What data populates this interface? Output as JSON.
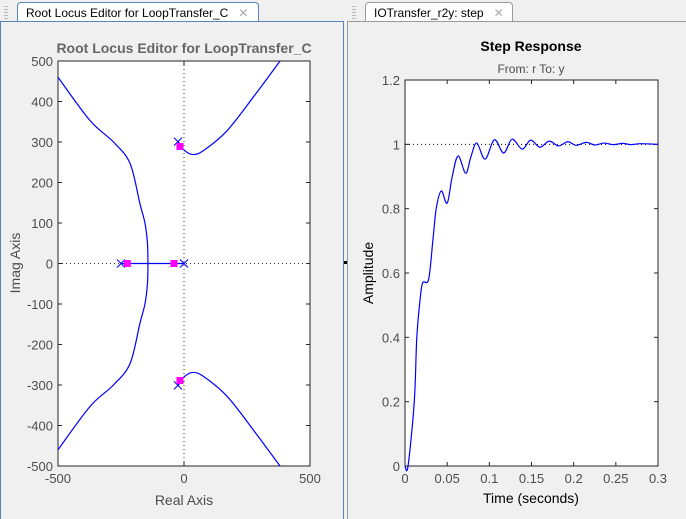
{
  "tabs": [
    {
      "label": "Root Locus Editor for LoopTransfer_C",
      "close_icon": "close-icon",
      "active": true
    },
    {
      "label": "IOTransfer_r2y: step",
      "close_icon": "close-icon",
      "active": false
    }
  ],
  "colors": {
    "locus": "#0000ff",
    "closed_loop_pole": "#ff00ff",
    "axis_text": "#4d4d4d"
  },
  "chart_data": [
    {
      "type": "scatter",
      "title": "Root Locus Editor for LoopTransfer_C",
      "xlabel": "Real Axis",
      "ylabel": "Imag Axis",
      "xlim": [
        -500,
        500
      ],
      "ylim": [
        -500,
        500
      ],
      "xticks": [
        -500,
        0,
        500
      ],
      "yticks": [
        -500,
        -400,
        -300,
        -200,
        -100,
        0,
        100,
        200,
        300,
        400,
        500
      ],
      "grid": false,
      "open_loop_poles": [
        [
          -250,
          0
        ],
        [
          0,
          0
        ],
        [
          -24,
          301
        ],
        [
          -24,
          -301
        ]
      ],
      "closed_loop_poles": [
        [
          -225,
          0
        ],
        [
          -40,
          0
        ],
        [
          -16,
          289
        ],
        [
          -16,
          -289
        ]
      ],
      "branches": [
        [
          [
            -250,
            0
          ],
          [
            -143,
            0
          ]
        ],
        [
          [
            0,
            0
          ],
          [
            -143,
            0
          ]
        ],
        [
          [
            -143,
            0
          ],
          [
            -145,
            50
          ],
          [
            -155,
            100
          ],
          [
            -175,
            148
          ],
          [
            -214,
            247
          ],
          [
            -280,
            300
          ],
          [
            -373,
            353
          ],
          [
            -500,
            460
          ]
        ],
        [
          [
            -143,
            0
          ],
          [
            -145,
            -50
          ],
          [
            -155,
            -100
          ],
          [
            -175,
            -148
          ],
          [
            -214,
            -247
          ],
          [
            -280,
            -300
          ],
          [
            -373,
            -353
          ],
          [
            -500,
            -460
          ]
        ],
        [
          [
            -24,
            301
          ],
          [
            0,
            280
          ],
          [
            36,
            269
          ],
          [
            80,
            280
          ],
          [
            171,
            328
          ],
          [
            280,
            415
          ],
          [
            381,
            500
          ]
        ],
        [
          [
            -24,
            -301
          ],
          [
            0,
            -280
          ],
          [
            36,
            -269
          ],
          [
            80,
            -280
          ],
          [
            171,
            -328
          ],
          [
            280,
            -415
          ],
          [
            381,
            -500
          ]
        ]
      ]
    },
    {
      "type": "line",
      "title": "Step Response",
      "subtitle": "From: r  To: y",
      "xlabel": "Time (seconds)",
      "ylabel": "Amplitude",
      "xlim": [
        0,
        0.3
      ],
      "ylim": [
        0,
        1.2
      ],
      "xticks": [
        0,
        0.05,
        0.1,
        0.15,
        0.2,
        0.25,
        0.3
      ],
      "yticks": [
        0,
        0.2,
        0.4,
        0.6,
        0.8,
        1,
        1.2
      ],
      "reference_line": 1,
      "grid": false,
      "x": [
        0,
        0.0036,
        0.011,
        0.014,
        0.018,
        0.021,
        0.028,
        0.033,
        0.037,
        0.043,
        0.05,
        0.056,
        0.063,
        0.072,
        0.078,
        0.085,
        0.095,
        0.106,
        0.117,
        0.127,
        0.139,
        0.149,
        0.16,
        0.171,
        0.182,
        0.193,
        0.203,
        0.215,
        0.225,
        0.236,
        0.247,
        0.258,
        0.268,
        0.279,
        0.3
      ],
      "values": [
        0,
        0,
        0.2,
        0.4,
        0.52,
        0.57,
        0.58,
        0.7,
        0.8,
        0.855,
        0.817,
        0.9,
        0.964,
        0.91,
        0.96,
        1.004,
        0.954,
        1.014,
        0.973,
        1.016,
        0.985,
        1.013,
        0.991,
        1.01,
        0.995,
        1.008,
        0.997,
        1.006,
        0.998,
        1.004,
        0.999,
        1.003,
        0.999,
        1.002,
        1.0
      ]
    }
  ]
}
